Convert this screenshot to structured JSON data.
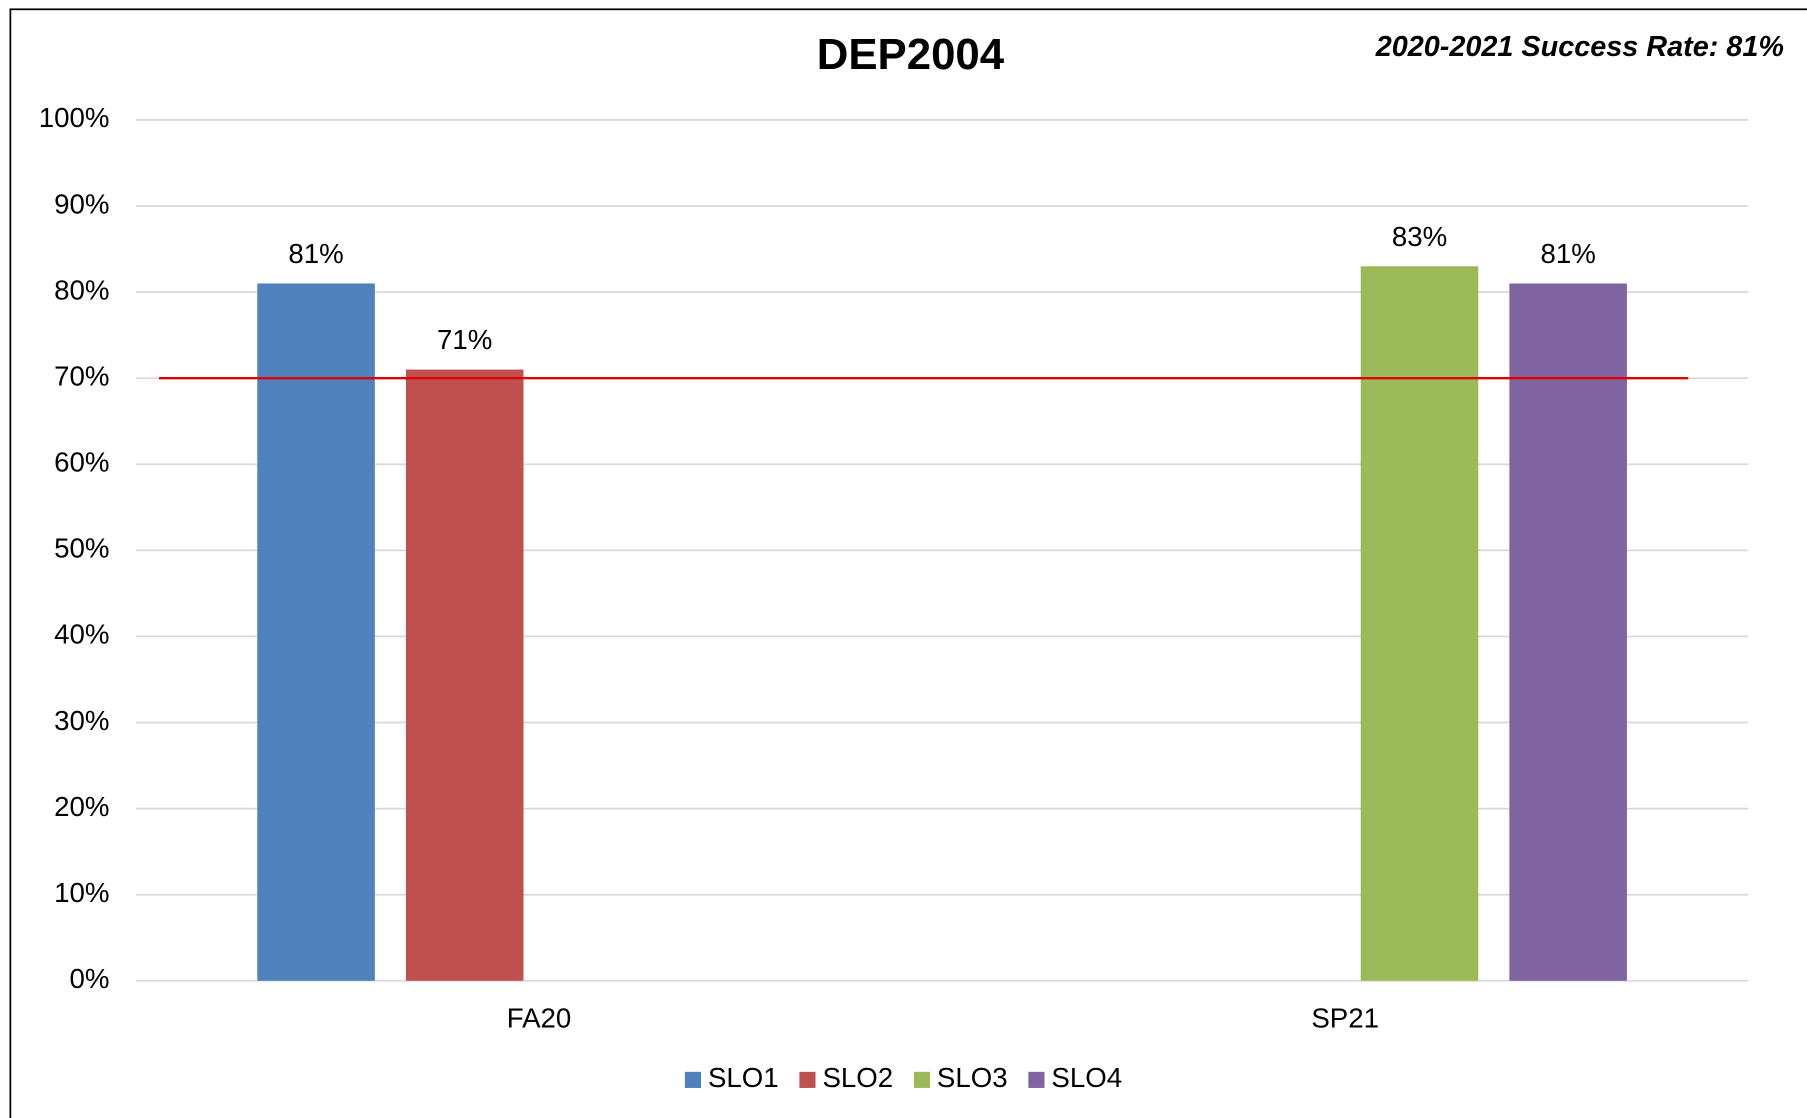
{
  "chart_data": {
    "type": "bar",
    "title": "DEP2004",
    "annotation": "2020-2021 Success Rate: 81%",
    "categories": [
      "FA20",
      "SP21"
    ],
    "series": [
      {
        "name": "SLO1",
        "color": "#4f81bd",
        "values": [
          81,
          null
        ],
        "value_labels": [
          "81%",
          null
        ]
      },
      {
        "name": "SLO2",
        "color": "#c0504d",
        "values": [
          71,
          null
        ],
        "value_labels": [
          "71%",
          null
        ]
      },
      {
        "name": "SLO3",
        "color": "#9bbb59",
        "values": [
          null,
          83
        ],
        "value_labels": [
          null,
          "83%"
        ]
      },
      {
        "name": "SLO4",
        "color": "#8064a2",
        "values": [
          null,
          81
        ],
        "value_labels": [
          null,
          "81%"
        ]
      }
    ],
    "ylim": [
      0,
      100
    ],
    "yticks": [
      {
        "value": 0,
        "label": "0%"
      },
      {
        "value": 10,
        "label": "10%"
      },
      {
        "value": 20,
        "label": "20%"
      },
      {
        "value": 30,
        "label": "30%"
      },
      {
        "value": 40,
        "label": "40%"
      },
      {
        "value": 50,
        "label": "50%"
      },
      {
        "value": 60,
        "label": "60%"
      },
      {
        "value": 70,
        "label": "70%"
      },
      {
        "value": 80,
        "label": "80%"
      },
      {
        "value": 90,
        "label": "90%"
      },
      {
        "value": 100,
        "label": "100%"
      }
    ],
    "grid": true,
    "legend": "bottom",
    "reference_line": {
      "value": 70,
      "color": "#e00000"
    }
  }
}
